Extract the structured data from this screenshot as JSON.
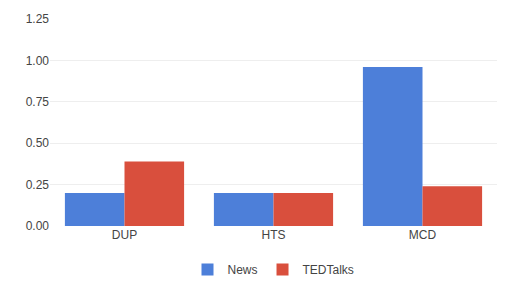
{
  "chart_data": {
    "type": "bar",
    "categories": [
      "DUP",
      "HTS",
      "MCD"
    ],
    "series": [
      {
        "name": "News",
        "color": "#4D7FD9",
        "values": [
          0.2,
          0.2,
          0.96
        ]
      },
      {
        "name": "TEDTalks",
        "color": "#D94F3D",
        "values": [
          0.39,
          0.2,
          0.24
        ]
      }
    ],
    "ylim": [
      0,
      1.25
    ],
    "yticks": [
      {
        "value": 0.0,
        "label": "0.00"
      },
      {
        "value": 0.25,
        "label": "0.25"
      },
      {
        "value": 0.5,
        "label": "0.50"
      },
      {
        "value": 0.75,
        "label": "0.75"
      },
      {
        "value": 1.0,
        "label": "1.00"
      },
      {
        "value": 1.25,
        "label": "1.25"
      }
    ],
    "grid": true,
    "legend": "bottom"
  }
}
